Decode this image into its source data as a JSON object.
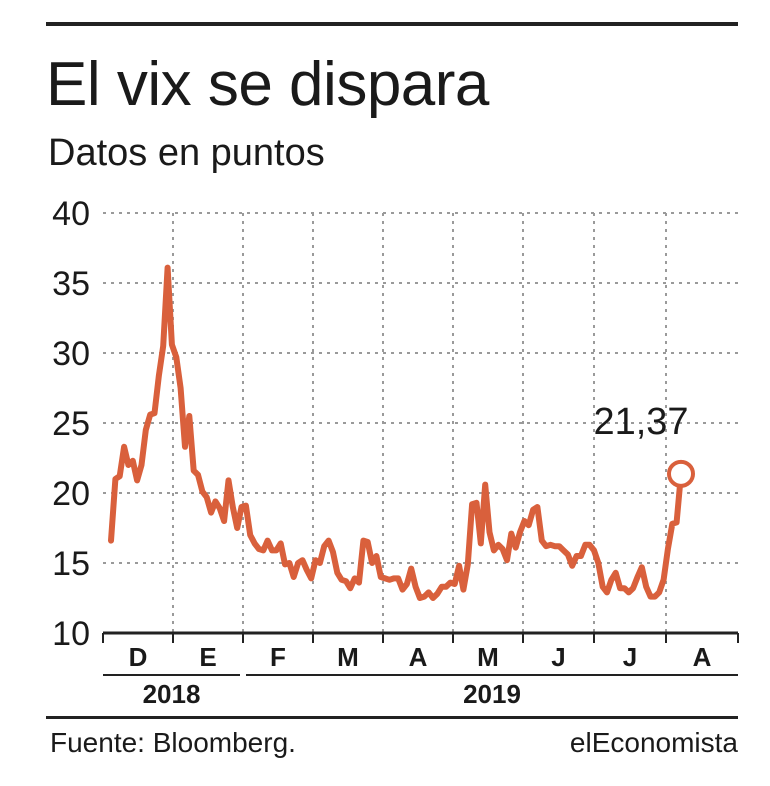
{
  "header": {
    "title": "El vix se dispara",
    "subtitle": "Datos en puntos"
  },
  "footer": {
    "source": "Fuente: Bloomberg.",
    "brand": "elEconomista"
  },
  "colors": {
    "line": "#d9603c",
    "grid": "#9a9a9a",
    "text": "#1a1a1a"
  },
  "chart_data": {
    "type": "line",
    "title": "El vix se dispara",
    "subtitle": "Datos en puntos",
    "ylim": [
      10,
      40
    ],
    "yticks": [
      10,
      15,
      20,
      25,
      30,
      35,
      40
    ],
    "grid": true,
    "month_labels": [
      "D",
      "E",
      "F",
      "M",
      "A",
      "M",
      "J",
      "J",
      "A"
    ],
    "year_labels": [
      {
        "label": "2018",
        "months": [
          "D"
        ]
      },
      {
        "label": "2019",
        "months": [
          "E",
          "F",
          "M",
          "A",
          "M",
          "J",
          "J",
          "A"
        ]
      }
    ],
    "annotation": {
      "label": "21,37",
      "value": 21.37
    },
    "series": [
      {
        "values": [
          16.6,
          21.0,
          21.2,
          23.3,
          22.0,
          22.3,
          20.9,
          22.0,
          24.5,
          25.6,
          25.7,
          28.4,
          30.5,
          36.1,
          30.6,
          29.7,
          27.5,
          23.3,
          25.5,
          21.6,
          21.3,
          20.1,
          19.7,
          18.6,
          19.4,
          18.9,
          18.0,
          20.9,
          19.0,
          17.5,
          19.0,
          19.1,
          17.0,
          16.4,
          16.0,
          15.9,
          16.6,
          15.9,
          15.9,
          16.4,
          14.9,
          15.0,
          14.0,
          15.0,
          15.2,
          14.5,
          13.9,
          15.2,
          15.0,
          16.2,
          16.6,
          15.8,
          14.3,
          13.8,
          13.7,
          13.2,
          13.9,
          13.6,
          16.6,
          16.5,
          15.0,
          15.5,
          14.0,
          13.9,
          13.8,
          13.9,
          13.9,
          13.1,
          13.5,
          14.6,
          13.3,
          12.5,
          12.6,
          12.9,
          12.5,
          12.8,
          13.3,
          13.3,
          13.6,
          13.5,
          14.8,
          13.1,
          14.9,
          19.2,
          19.3,
          16.4,
          20.6,
          17.2,
          15.9,
          16.3,
          16.0,
          15.2,
          17.1,
          16.1,
          17.2,
          18.0,
          17.7,
          18.8,
          19.0,
          16.6,
          16.2,
          16.3,
          16.2,
          16.2,
          15.9,
          15.6,
          14.8,
          15.5,
          15.5,
          16.3,
          16.3,
          15.9,
          15.0,
          13.3,
          12.9,
          13.8,
          14.3,
          13.2,
          13.2,
          12.9,
          13.2,
          14.0,
          14.7,
          13.3,
          12.6,
          12.6,
          12.9,
          13.8,
          16.0,
          17.8,
          17.9,
          21.37
        ]
      }
    ]
  }
}
